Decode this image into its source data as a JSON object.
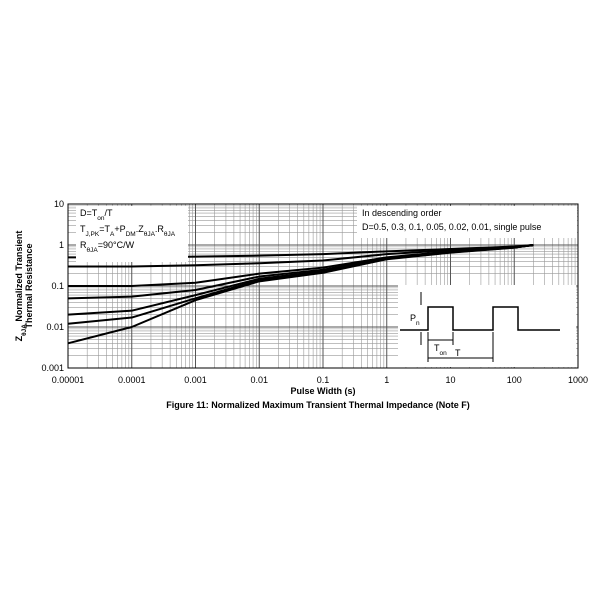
{
  "chart_data": {
    "type": "line",
    "title": "Figure 11: Normalized Maximum Transient Thermal Impedance (Note F)",
    "x_label": "Pulse Width (s)",
    "y_label": [
      [
        {
          "text": "Z"
        },
        {
          "text": "θJA",
          "sub": true
        },
        {
          "text": " Normalized Transient"
        }
      ],
      [
        {
          "text": "Thermal Resistance"
        }
      ]
    ],
    "x": [
      1e-05,
      0.0001,
      0.001,
      0.01,
      0.1,
      1,
      10,
      100,
      200
    ],
    "series": [
      {
        "color": "#000000",
        "values": [
          0.5,
          0.5,
          0.52,
          0.55,
          0.6,
          0.7,
          0.8,
          0.92,
          1
        ]
      },
      {
        "color": "#000000",
        "values": [
          0.3,
          0.3,
          0.32,
          0.36,
          0.42,
          0.6,
          0.75,
          0.9,
          1
        ]
      },
      {
        "color": "#000000",
        "values": [
          0.1,
          0.1,
          0.12,
          0.2,
          0.28,
          0.5,
          0.7,
          0.88,
          1
        ]
      },
      {
        "color": "#000000",
        "values": [
          0.05,
          0.055,
          0.08,
          0.17,
          0.25,
          0.48,
          0.68,
          0.87,
          1
        ]
      },
      {
        "color": "#000000",
        "values": [
          0.02,
          0.025,
          0.06,
          0.15,
          0.23,
          0.47,
          0.67,
          0.87,
          1
        ]
      },
      {
        "color": "#000000",
        "values": [
          0.012,
          0.017,
          0.05,
          0.14,
          0.22,
          0.46,
          0.66,
          0.87,
          1
        ]
      },
      {
        "color": "#000000",
        "values": [
          0.004,
          0.01,
          0.045,
          0.13,
          0.21,
          0.45,
          0.65,
          0.86,
          1
        ]
      }
    ],
    "xlim": [
      1e-05,
      1000
    ],
    "xticks": [
      1e-05,
      0.0001,
      0.001,
      0.01,
      0.1,
      1,
      10,
      100,
      1000
    ],
    "ylim": [
      0.001,
      10
    ],
    "yticks": [
      0.001,
      0.01,
      0.1,
      1,
      10
    ],
    "log_x": true,
    "log_y": true,
    "grid": true,
    "notes": [
      [
        {
          "text": "D=T"
        },
        {
          "text": "on",
          "sub": true
        },
        {
          "text": "/T"
        }
      ],
      [
        {
          "text": "T"
        },
        {
          "text": "J,PK",
          "sub": true
        },
        {
          "text": "=T"
        },
        {
          "text": "A",
          "sub": true
        },
        {
          "text": "+P"
        },
        {
          "text": "DM",
          "sub": true
        },
        {
          "text": ".Z"
        },
        {
          "text": "θJA",
          "sub": true
        },
        {
          "text": ".R"
        },
        {
          "text": "θJA",
          "sub": true
        }
      ],
      [
        {
          "text": "R"
        },
        {
          "text": "θJA",
          "sub": true
        },
        {
          "text": "=90°C/W"
        }
      ]
    ],
    "legend_text": [
      "In descending order",
      "D=0.5, 0.3, 0.1, 0.05, 0.02, 0.01, single pulse"
    ],
    "inset_labels": [
      [
        {
          "text": "P"
        },
        {
          "text": "n",
          "sub": true
        }
      ],
      [
        {
          "text": "T"
        },
        {
          "text": "on",
          "sub": true
        }
      ],
      [
        {
          "text": "T"
        }
      ]
    ]
  }
}
